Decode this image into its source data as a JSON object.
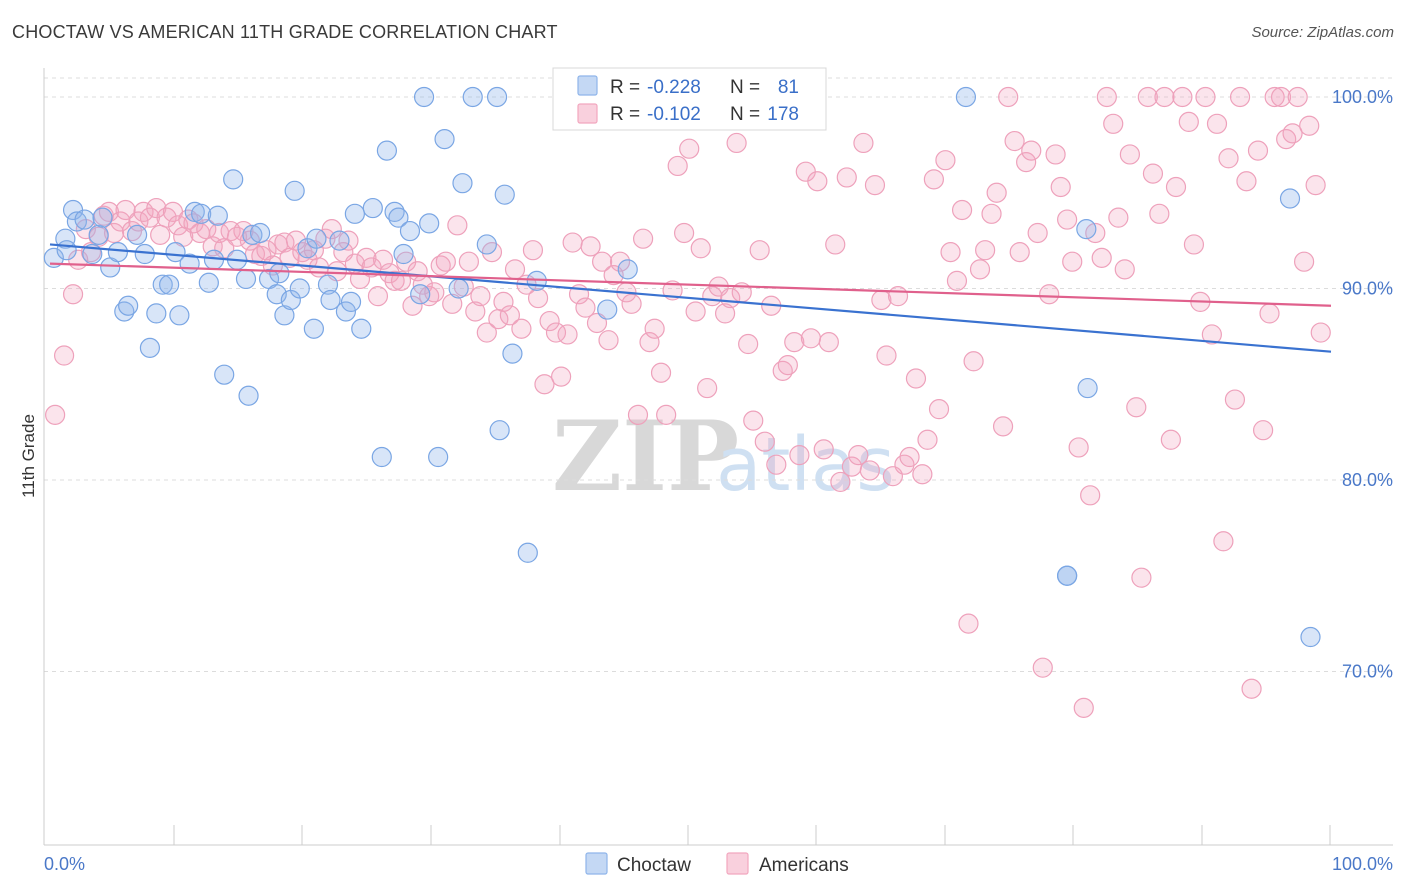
{
  "header": {
    "title": "CHOCTAW VS AMERICAN 11TH GRADE CORRELATION CHART",
    "source": "Source: ZipAtlas.com"
  },
  "colors": {
    "choctaw": "#8fb5ea",
    "choctaw_line": "#3a72d0",
    "americans": "#f2a7bf",
    "americans_line": "#e0608c",
    "tick_label": "#4a78c8"
  },
  "legend": {
    "rows": [
      {
        "r_label": "R =",
        "r_value": "-0.228",
        "n_label": "N =",
        "n_value": "81"
      },
      {
        "r_label": "R =",
        "r_value": "-0.102",
        "n_label": "N =",
        "n_value": "178"
      }
    ],
    "bottom": [
      {
        "label": "Choctaw"
      },
      {
        "label": "Americans"
      }
    ]
  },
  "watermark": {
    "part1": "ZIP",
    "part2": "atlas"
  },
  "chart_data": {
    "type": "scatter",
    "title": "CHOCTAW VS AMERICAN 11TH GRADE CORRELATION CHART",
    "xlabel": "",
    "ylabel": "11th Grade",
    "xlim": [
      0,
      100
    ],
    "ylim": [
      60.5,
      101.5
    ],
    "x_tick_labels": [
      "0.0%",
      "100.0%"
    ],
    "y_ticks": [
      {
        "value": 100,
        "label": "100.0%"
      },
      {
        "value": 90,
        "label": "90.0%"
      },
      {
        "value": 80,
        "label": "80.0%"
      },
      {
        "value": 70,
        "label": "70.0%"
      }
    ],
    "grid": "horizontal dashed",
    "legend_position": "top-center",
    "series": [
      {
        "name": "Choctaw",
        "trend": {
          "x": [
            0,
            100
          ],
          "y": [
            92.3,
            86.7
          ]
        },
        "points": [
          [
            0.3,
            91.6
          ],
          [
            1.2,
            92.6
          ],
          [
            1.3,
            92.0
          ],
          [
            1.8,
            94.1
          ],
          [
            2.1,
            93.5
          ],
          [
            2.7,
            93.6
          ],
          [
            3.3,
            91.8
          ],
          [
            3.8,
            92.8
          ],
          [
            4.1,
            93.7
          ],
          [
            4.7,
            91.1
          ],
          [
            5.3,
            91.9
          ],
          [
            5.8,
            88.8
          ],
          [
            6.1,
            89.1
          ],
          [
            6.8,
            92.8
          ],
          [
            7.4,
            91.8
          ],
          [
            7.8,
            86.9
          ],
          [
            8.3,
            88.7
          ],
          [
            8.8,
            90.2
          ],
          [
            9.3,
            90.2
          ],
          [
            9.8,
            91.9
          ],
          [
            10.1,
            88.6
          ],
          [
            10.9,
            91.3
          ],
          [
            11.3,
            94.0
          ],
          [
            11.8,
            93.9
          ],
          [
            12.4,
            90.3
          ],
          [
            12.8,
            91.5
          ],
          [
            13.1,
            93.8
          ],
          [
            13.6,
            85.5
          ],
          [
            14.3,
            95.7
          ],
          [
            14.6,
            91.5
          ],
          [
            15.3,
            90.5
          ],
          [
            15.5,
            84.4
          ],
          [
            15.8,
            92.8
          ],
          [
            16.4,
            92.9
          ],
          [
            17.1,
            90.5
          ],
          [
            17.7,
            89.7
          ],
          [
            17.9,
            90.8
          ],
          [
            18.3,
            88.6
          ],
          [
            18.8,
            89.4
          ],
          [
            19.1,
            95.1
          ],
          [
            19.5,
            90.0
          ],
          [
            20.1,
            92.1
          ],
          [
            20.6,
            87.9
          ],
          [
            20.8,
            92.6
          ],
          [
            21.7,
            90.2
          ],
          [
            21.9,
            89.4
          ],
          [
            22.6,
            92.5
          ],
          [
            23.1,
            88.8
          ],
          [
            23.5,
            89.3
          ],
          [
            23.8,
            93.9
          ],
          [
            24.3,
            87.9
          ],
          [
            25.2,
            94.2
          ],
          [
            25.9,
            81.2
          ],
          [
            26.3,
            97.2
          ],
          [
            26.9,
            94.0
          ],
          [
            27.2,
            93.7
          ],
          [
            27.6,
            91.8
          ],
          [
            28.1,
            93.0
          ],
          [
            28.9,
            89.7
          ],
          [
            29.2,
            100.0
          ],
          [
            29.6,
            93.4
          ],
          [
            30.3,
            81.2
          ],
          [
            30.8,
            97.8
          ],
          [
            31.9,
            90.0
          ],
          [
            32.2,
            95.5
          ],
          [
            33.0,
            100.0
          ],
          [
            34.1,
            92.3
          ],
          [
            34.9,
            100.0
          ],
          [
            35.1,
            82.6
          ],
          [
            35.5,
            94.9
          ],
          [
            36.1,
            86.6
          ],
          [
            37.3,
            76.2
          ],
          [
            38.0,
            90.4
          ],
          [
            43.5,
            88.9
          ],
          [
            45.1,
            91.0
          ],
          [
            52.9,
            100.0
          ],
          [
            71.5,
            100.0
          ],
          [
            79.4,
            75.0
          ],
          [
            79.4,
            75.0
          ],
          [
            81.0,
            84.8
          ],
          [
            80.9,
            93.1
          ],
          [
            96.8,
            94.7
          ],
          [
            98.4,
            71.8
          ]
        ]
      },
      {
        "name": "Americans",
        "trend": {
          "x": [
            0,
            100
          ],
          "y": [
            91.3,
            89.1
          ]
        },
        "points": [
          [
            0.4,
            83.4
          ],
          [
            1.1,
            86.5
          ],
          [
            1.8,
            89.7
          ],
          [
            2.2,
            91.5
          ],
          [
            2.8,
            93.1
          ],
          [
            3.2,
            91.9
          ],
          [
            3.8,
            92.7
          ],
          [
            4.2,
            93.8
          ],
          [
            4.6,
            94.0
          ],
          [
            5.0,
            92.9
          ],
          [
            5.5,
            93.5
          ],
          [
            5.9,
            94.1
          ],
          [
            6.4,
            93.0
          ],
          [
            6.9,
            93.5
          ],
          [
            7.3,
            94.0
          ],
          [
            7.8,
            93.7
          ],
          [
            8.3,
            94.2
          ],
          [
            8.6,
            92.8
          ],
          [
            9.1,
            93.7
          ],
          [
            9.6,
            94.0
          ],
          [
            10.0,
            93.3
          ],
          [
            10.4,
            92.7
          ],
          [
            10.8,
            93.6
          ],
          [
            11.2,
            93.4
          ],
          [
            11.7,
            92.9
          ],
          [
            12.2,
            93.1
          ],
          [
            12.7,
            92.2
          ],
          [
            13.2,
            92.9
          ],
          [
            13.6,
            92.1
          ],
          [
            14.1,
            93.0
          ],
          [
            14.6,
            92.7
          ],
          [
            15.1,
            93.0
          ],
          [
            15.6,
            92.5
          ],
          [
            16.0,
            91.8
          ],
          [
            16.5,
            91.7
          ],
          [
            16.9,
            92.0
          ],
          [
            17.4,
            91.2
          ],
          [
            17.8,
            92.3
          ],
          [
            18.3,
            92.4
          ],
          [
            18.7,
            91.6
          ],
          [
            19.2,
            92.5
          ],
          [
            19.7,
            91.9
          ],
          [
            20.1,
            91.5
          ],
          [
            20.6,
            92.0
          ],
          [
            21.0,
            91.1
          ],
          [
            21.5,
            92.6
          ],
          [
            22.0,
            93.1
          ],
          [
            22.4,
            90.9
          ],
          [
            22.9,
            91.9
          ],
          [
            23.3,
            92.5
          ],
          [
            23.8,
            91.3
          ],
          [
            24.2,
            90.5
          ],
          [
            24.7,
            91.6
          ],
          [
            25.1,
            91.1
          ],
          [
            25.6,
            89.6
          ],
          [
            26.0,
            91.5
          ],
          [
            26.5,
            90.8
          ],
          [
            26.9,
            90.4
          ],
          [
            27.4,
            90.4
          ],
          [
            27.8,
            91.4
          ],
          [
            28.3,
            89.1
          ],
          [
            28.7,
            90.9
          ],
          [
            29.1,
            90.2
          ],
          [
            29.6,
            89.6
          ],
          [
            30.0,
            89.8
          ],
          [
            30.5,
            91.2
          ],
          [
            30.9,
            91.4
          ],
          [
            31.4,
            89.2
          ],
          [
            31.8,
            93.3
          ],
          [
            32.3,
            90.1
          ],
          [
            32.7,
            91.4
          ],
          [
            33.2,
            88.8
          ],
          [
            33.6,
            89.6
          ],
          [
            34.1,
            87.7
          ],
          [
            34.5,
            91.9
          ],
          [
            35.0,
            88.4
          ],
          [
            35.4,
            89.3
          ],
          [
            35.9,
            88.6
          ],
          [
            36.3,
            91.0
          ],
          [
            36.8,
            87.9
          ],
          [
            37.2,
            90.2
          ],
          [
            37.7,
            92.0
          ],
          [
            38.1,
            89.5
          ],
          [
            38.6,
            85.0
          ],
          [
            39.0,
            88.3
          ],
          [
            39.5,
            87.7
          ],
          [
            39.9,
            85.4
          ],
          [
            40.4,
            87.6
          ],
          [
            40.8,
            92.4
          ],
          [
            41.3,
            89.7
          ],
          [
            41.8,
            89.0
          ],
          [
            42.2,
            92.2
          ],
          [
            42.7,
            88.2
          ],
          [
            43.1,
            91.4
          ],
          [
            43.6,
            87.3
          ],
          [
            44.0,
            90.7
          ],
          [
            44.5,
            91.4
          ],
          [
            45.0,
            89.8
          ],
          [
            45.4,
            89.2
          ],
          [
            45.9,
            83.4
          ],
          [
            46.3,
            92.6
          ],
          [
            46.8,
            87.2
          ],
          [
            47.2,
            87.9
          ],
          [
            47.7,
            85.6
          ],
          [
            48.1,
            83.4
          ],
          [
            48.6,
            89.9
          ],
          [
            49.0,
            96.4
          ],
          [
            49.5,
            92.9
          ],
          [
            49.9,
            97.3
          ],
          [
            50.4,
            88.8
          ],
          [
            50.8,
            92.1
          ],
          [
            51.3,
            84.8
          ],
          [
            51.7,
            89.6
          ],
          [
            52.2,
            90.1
          ],
          [
            52.7,
            88.7
          ],
          [
            53.1,
            89.5
          ],
          [
            53.6,
            97.6
          ],
          [
            54.0,
            89.8
          ],
          [
            54.5,
            87.1
          ],
          [
            54.9,
            83.1
          ],
          [
            55.4,
            92.0
          ],
          [
            55.8,
            82.0
          ],
          [
            56.3,
            89.1
          ],
          [
            56.7,
            80.8
          ],
          [
            57.2,
            85.7
          ],
          [
            57.6,
            86.0
          ],
          [
            58.1,
            87.2
          ],
          [
            58.5,
            81.3
          ],
          [
            59.0,
            96.1
          ],
          [
            59.4,
            87.4
          ],
          [
            59.9,
            95.6
          ],
          [
            60.4,
            81.6
          ],
          [
            60.8,
            87.2
          ],
          [
            61.3,
            92.3
          ],
          [
            61.7,
            79.9
          ],
          [
            62.2,
            95.8
          ],
          [
            62.6,
            80.7
          ],
          [
            63.1,
            81.3
          ],
          [
            63.5,
            97.6
          ],
          [
            64.0,
            80.5
          ],
          [
            64.4,
            95.4
          ],
          [
            64.9,
            89.4
          ],
          [
            65.3,
            86.5
          ],
          [
            65.8,
            80.2
          ],
          [
            66.2,
            89.6
          ],
          [
            66.7,
            80.8
          ],
          [
            67.1,
            81.2
          ],
          [
            67.6,
            85.3
          ],
          [
            68.1,
            80.3
          ],
          [
            68.5,
            82.1
          ],
          [
            69.0,
            95.7
          ],
          [
            69.4,
            83.7
          ],
          [
            69.9,
            96.7
          ],
          [
            70.3,
            91.9
          ],
          [
            70.8,
            90.4
          ],
          [
            71.2,
            94.1
          ],
          [
            71.7,
            72.5
          ],
          [
            72.1,
            86.2
          ],
          [
            72.6,
            91.0
          ],
          [
            73.0,
            92.0
          ],
          [
            73.5,
            93.9
          ],
          [
            73.9,
            95.0
          ],
          [
            74.4,
            82.8
          ],
          [
            74.8,
            100.0
          ],
          [
            75.3,
            97.7
          ],
          [
            75.7,
            91.9
          ],
          [
            76.2,
            96.6
          ],
          [
            76.6,
            97.2
          ],
          [
            77.1,
            92.9
          ],
          [
            77.5,
            70.2
          ],
          [
            78.0,
            89.7
          ],
          [
            78.5,
            97.0
          ],
          [
            78.9,
            95.3
          ],
          [
            79.4,
            93.6
          ],
          [
            79.8,
            91.4
          ],
          [
            80.3,
            81.7
          ],
          [
            80.7,
            68.1
          ],
          [
            81.2,
            79.2
          ],
          [
            81.6,
            92.9
          ],
          [
            82.1,
            91.6
          ],
          [
            82.5,
            100.0
          ],
          [
            83.0,
            98.6
          ],
          [
            83.4,
            93.7
          ],
          [
            83.9,
            91.0
          ],
          [
            84.3,
            97.0
          ],
          [
            84.8,
            83.8
          ],
          [
            85.2,
            74.9
          ],
          [
            85.7,
            100.0
          ],
          [
            86.1,
            96.0
          ],
          [
            86.6,
            93.9
          ],
          [
            87.0,
            100.0
          ],
          [
            87.5,
            82.1
          ],
          [
            87.9,
            95.3
          ],
          [
            88.4,
            100.0
          ],
          [
            88.9,
            98.7
          ],
          [
            89.3,
            92.3
          ],
          [
            89.8,
            89.3
          ],
          [
            90.2,
            100.0
          ],
          [
            90.7,
            87.6
          ],
          [
            91.1,
            98.6
          ],
          [
            91.6,
            76.8
          ],
          [
            92.0,
            96.8
          ],
          [
            92.5,
            84.2
          ],
          [
            92.9,
            100.0
          ],
          [
            93.4,
            95.6
          ],
          [
            93.8,
            69.1
          ],
          [
            94.3,
            97.2
          ],
          [
            94.7,
            82.6
          ],
          [
            95.2,
            88.7
          ],
          [
            95.6,
            100.0
          ],
          [
            96.1,
            100.0
          ],
          [
            96.5,
            97.8
          ],
          [
            97.0,
            98.1
          ],
          [
            97.4,
            100.0
          ],
          [
            97.9,
            91.4
          ],
          [
            98.3,
            98.5
          ],
          [
            98.8,
            95.4
          ],
          [
            99.2,
            87.7
          ]
        ]
      }
    ]
  }
}
